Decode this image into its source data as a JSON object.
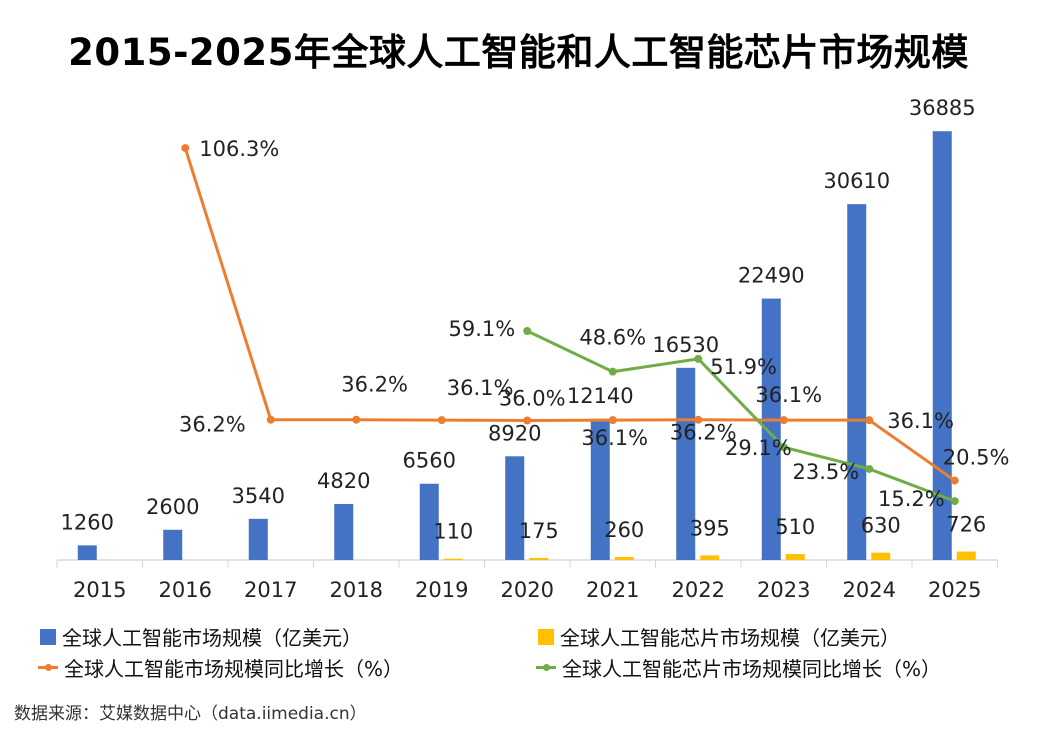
{
  "title": "2015-2025年全球人工智能和人工智能芯片市场规模",
  "source": "数据来源：艾媒数据中心（data.iimedia.cn）",
  "colors": {
    "ai_market": "#4472C4",
    "chip_market": "#FFC000",
    "ai_growth": "#ED7D31",
    "chip_growth": "#70AD47"
  },
  "chart_data": {
    "type": "bar",
    "title": "2015-2025年全球人工智能和人工智能芯片市场规模",
    "categories": [
      "2015",
      "2016",
      "2017",
      "2018",
      "2019",
      "2020",
      "2021",
      "2022",
      "2023",
      "2024",
      "2025"
    ],
    "ylim": [
      0,
      40000
    ],
    "y2lim": [
      0,
      120
    ],
    "grid": false,
    "legend_position": "bottom",
    "series": [
      {
        "name": "全球人工智能市场规模（亿美元）",
        "type": "bar",
        "axis": "primary",
        "values": [
          1260,
          2600,
          3540,
          4820,
          6560,
          8920,
          12140,
          16530,
          22490,
          30610,
          36885
        ]
      },
      {
        "name": "全球人工智能芯片市场规模（亿美元）",
        "type": "bar",
        "axis": "primary",
        "values": [
          null,
          null,
          null,
          null,
          110,
          175,
          260,
          395,
          510,
          630,
          726
        ]
      },
      {
        "name": "全球人工智能市场规模同比增长（%）",
        "type": "line",
        "axis": "secondary",
        "values": [
          null,
          106.3,
          36.2,
          36.2,
          36.1,
          36.0,
          36.1,
          36.2,
          36.1,
          36.1,
          20.5
        ]
      },
      {
        "name": "全球人工智能芯片市场规模同比增长（%）",
        "type": "line",
        "axis": "secondary",
        "values": [
          null,
          null,
          null,
          null,
          null,
          59.1,
          48.6,
          51.9,
          29.1,
          23.5,
          15.2
        ]
      }
    ]
  }
}
